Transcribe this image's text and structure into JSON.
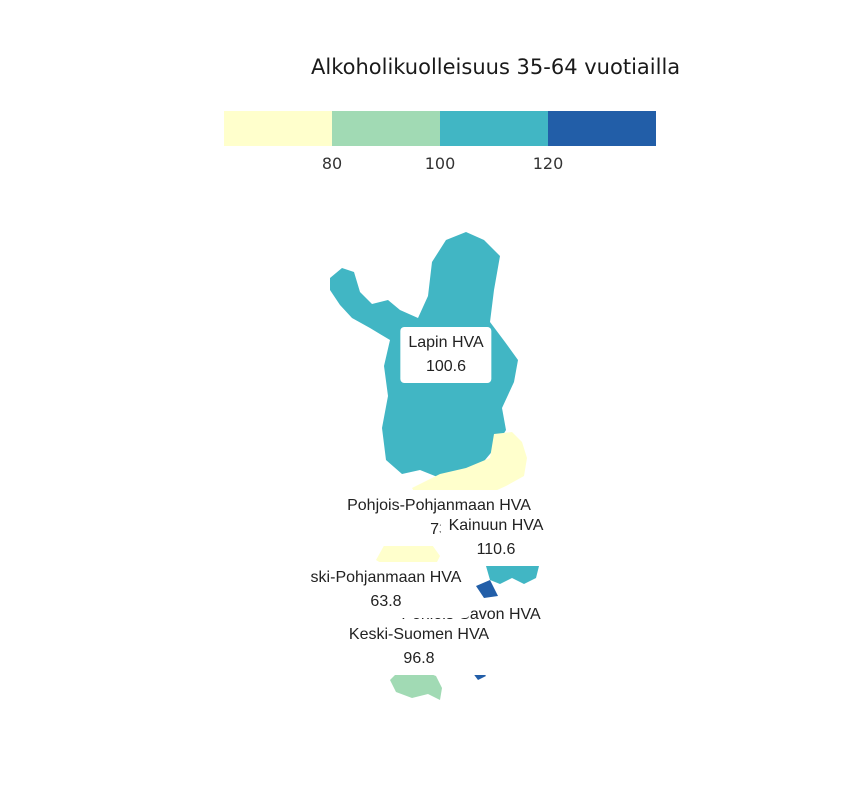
{
  "title": "Alkoholikuolleisuus 35-64 vuotiailla",
  "legend": {
    "ticks": [
      "80",
      "100",
      "120"
    ],
    "colors": [
      "#ffffcc",
      "#a1dab4",
      "#41b6c4",
      "#225ea8"
    ]
  },
  "regions": [
    {
      "name": "Lapin HVA",
      "value": "100.6",
      "color": "#41b6c4"
    },
    {
      "name": "Pohjois-Pohjanmaan HVA",
      "value": "73",
      "color": "#ffffcc"
    },
    {
      "name": "Kainuun HVA",
      "value": "110.6",
      "color": "#41b6c4"
    },
    {
      "name": "ski-Pohjanmaan HVA",
      "value": "63.8",
      "color": "#ffffcc"
    },
    {
      "name": "Pohjois-Savon HVA",
      "value": "",
      "color": "#225ea8"
    },
    {
      "name": "Keski-Suomen HVA",
      "value": "96.8",
      "color": "#a1dab4"
    }
  ]
}
